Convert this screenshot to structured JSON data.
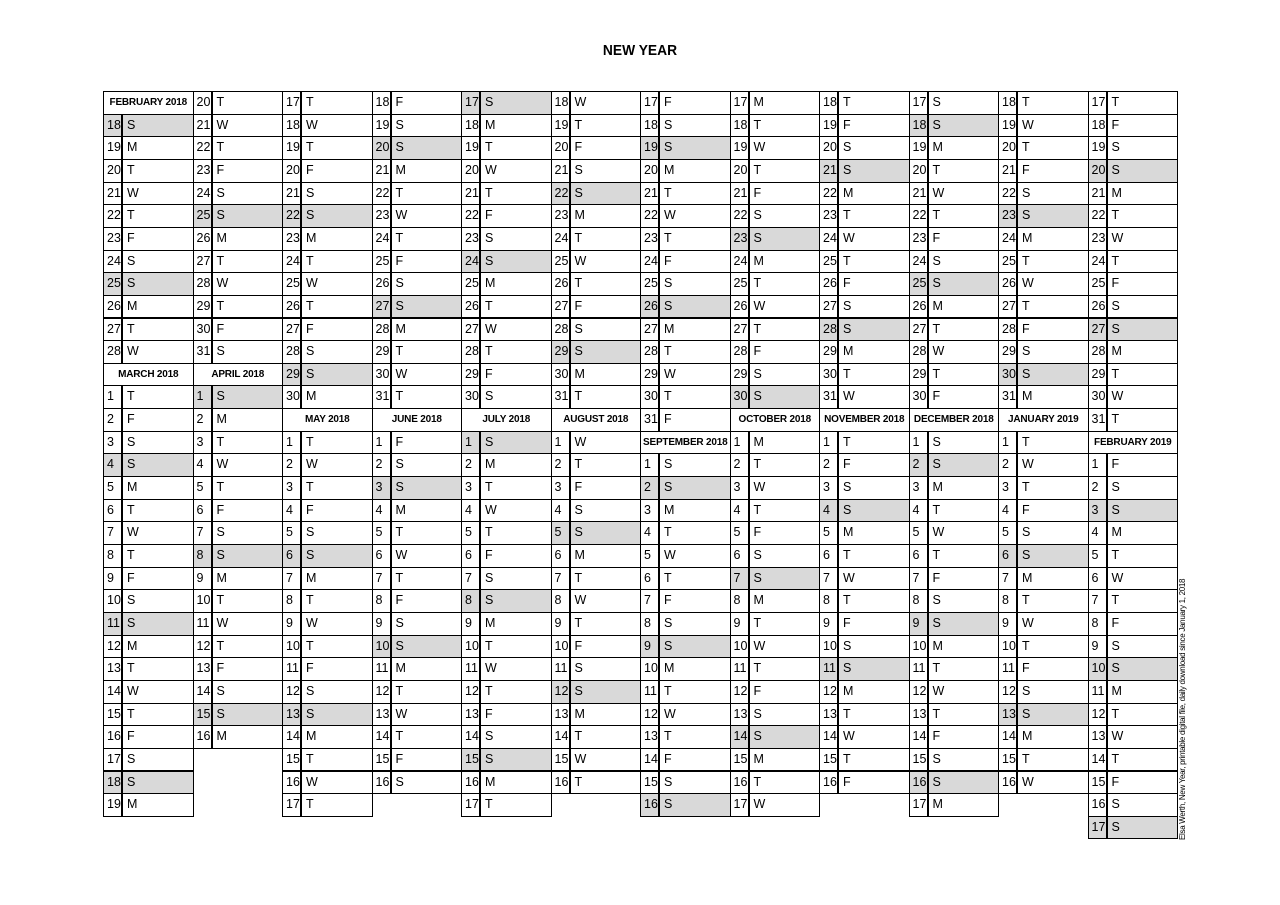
{
  "title": "NEW YEAR",
  "credit": "Elsa Werth, New Year, printable digital file, daily download since January 1, 2018",
  "colors": {
    "sunday_shade": "#d9d9d9",
    "border": "#000000"
  },
  "months": [
    {
      "name": "FEBRUARY 2018",
      "first_day": 18,
      "weekdays": "SMTWTFSSMTW",
      "shaded_days": [
        18,
        25
      ]
    },
    {
      "name": "MARCH 2018",
      "first_day": 1,
      "weekdays": "TFSSMTWTFSSMTWTFSSMTWTFSSMTWTFS",
      "shaded_days": [
        4,
        11,
        18,
        25
      ]
    },
    {
      "name": "APRIL 2018",
      "first_day": 1,
      "weekdays": "SMTWTFSSMTWTFSSMTWTFSSMTWTFSSM",
      "shaded_days": [
        1,
        8,
        15,
        22,
        29
      ]
    },
    {
      "name": "MAY 2018",
      "first_day": 1,
      "weekdays": "TWTFSSMTWTFSSMTWTFSSMTWTFSSMTWT",
      "shaded_days": [
        6,
        13,
        20,
        27
      ]
    },
    {
      "name": "JUNE 2018",
      "first_day": 1,
      "weekdays": "FSSMTWTFSSMTWTFSSMTWTFSSMTWTFS",
      "shaded_days": [
        3,
        10,
        17,
        24
      ]
    },
    {
      "name": "JULY 2018",
      "first_day": 1,
      "weekdays": "SMTWTFSSMTWTFSSMTWTFSSMTWTFSSMT",
      "shaded_days": [
        1,
        8,
        15,
        22,
        29
      ]
    },
    {
      "name": "AUGUST 2018",
      "first_day": 1,
      "weekdays": "WTFSSMTWTFSSMTWTFSSMTWTFSSMTWTF",
      "shaded_days": [
        5,
        12,
        19,
        26
      ]
    },
    {
      "name": "SEPTEMBER 2018",
      "first_day": 1,
      "weekdays": "SSMTWTFSSMTWTFSSMTWTFSSMTWTFSS",
      "shaded_days": [
        2,
        9,
        16,
        23,
        30
      ]
    },
    {
      "name": "OCTOBER 2018",
      "first_day": 1,
      "weekdays": "MTWTFSSMTWTFSSMTWTFSSMTWTFSSMTW",
      "shaded_days": [
        7,
        14,
        21,
        28
      ]
    },
    {
      "name": "NOVEMBER 2018",
      "first_day": 1,
      "weekdays": "TFSSMTWTFSSMTWTFSSMTWTFSSMTWTF",
      "shaded_days": [
        4,
        11,
        18,
        25
      ]
    },
    {
      "name": "DECEMBER 2018",
      "first_day": 1,
      "weekdays": "SSMTWTFSSMTWTFSSMTWTFSSMTWTFSSM",
      "shaded_days": [
        2,
        9,
        16,
        23,
        30
      ]
    },
    {
      "name": "JANUARY 2019",
      "first_day": 1,
      "weekdays": "TWTFSSMTWTFSSMTWTFSSMTWTFSSMTWT",
      "shaded_days": [
        6,
        13,
        20,
        27
      ]
    },
    {
      "name": "FEBRUARY 2019",
      "first_day": 1,
      "weekdays": "FSSMTWTFSSMTWTFSS",
      "shaded_days": [
        3,
        10,
        17
      ]
    }
  ]
}
